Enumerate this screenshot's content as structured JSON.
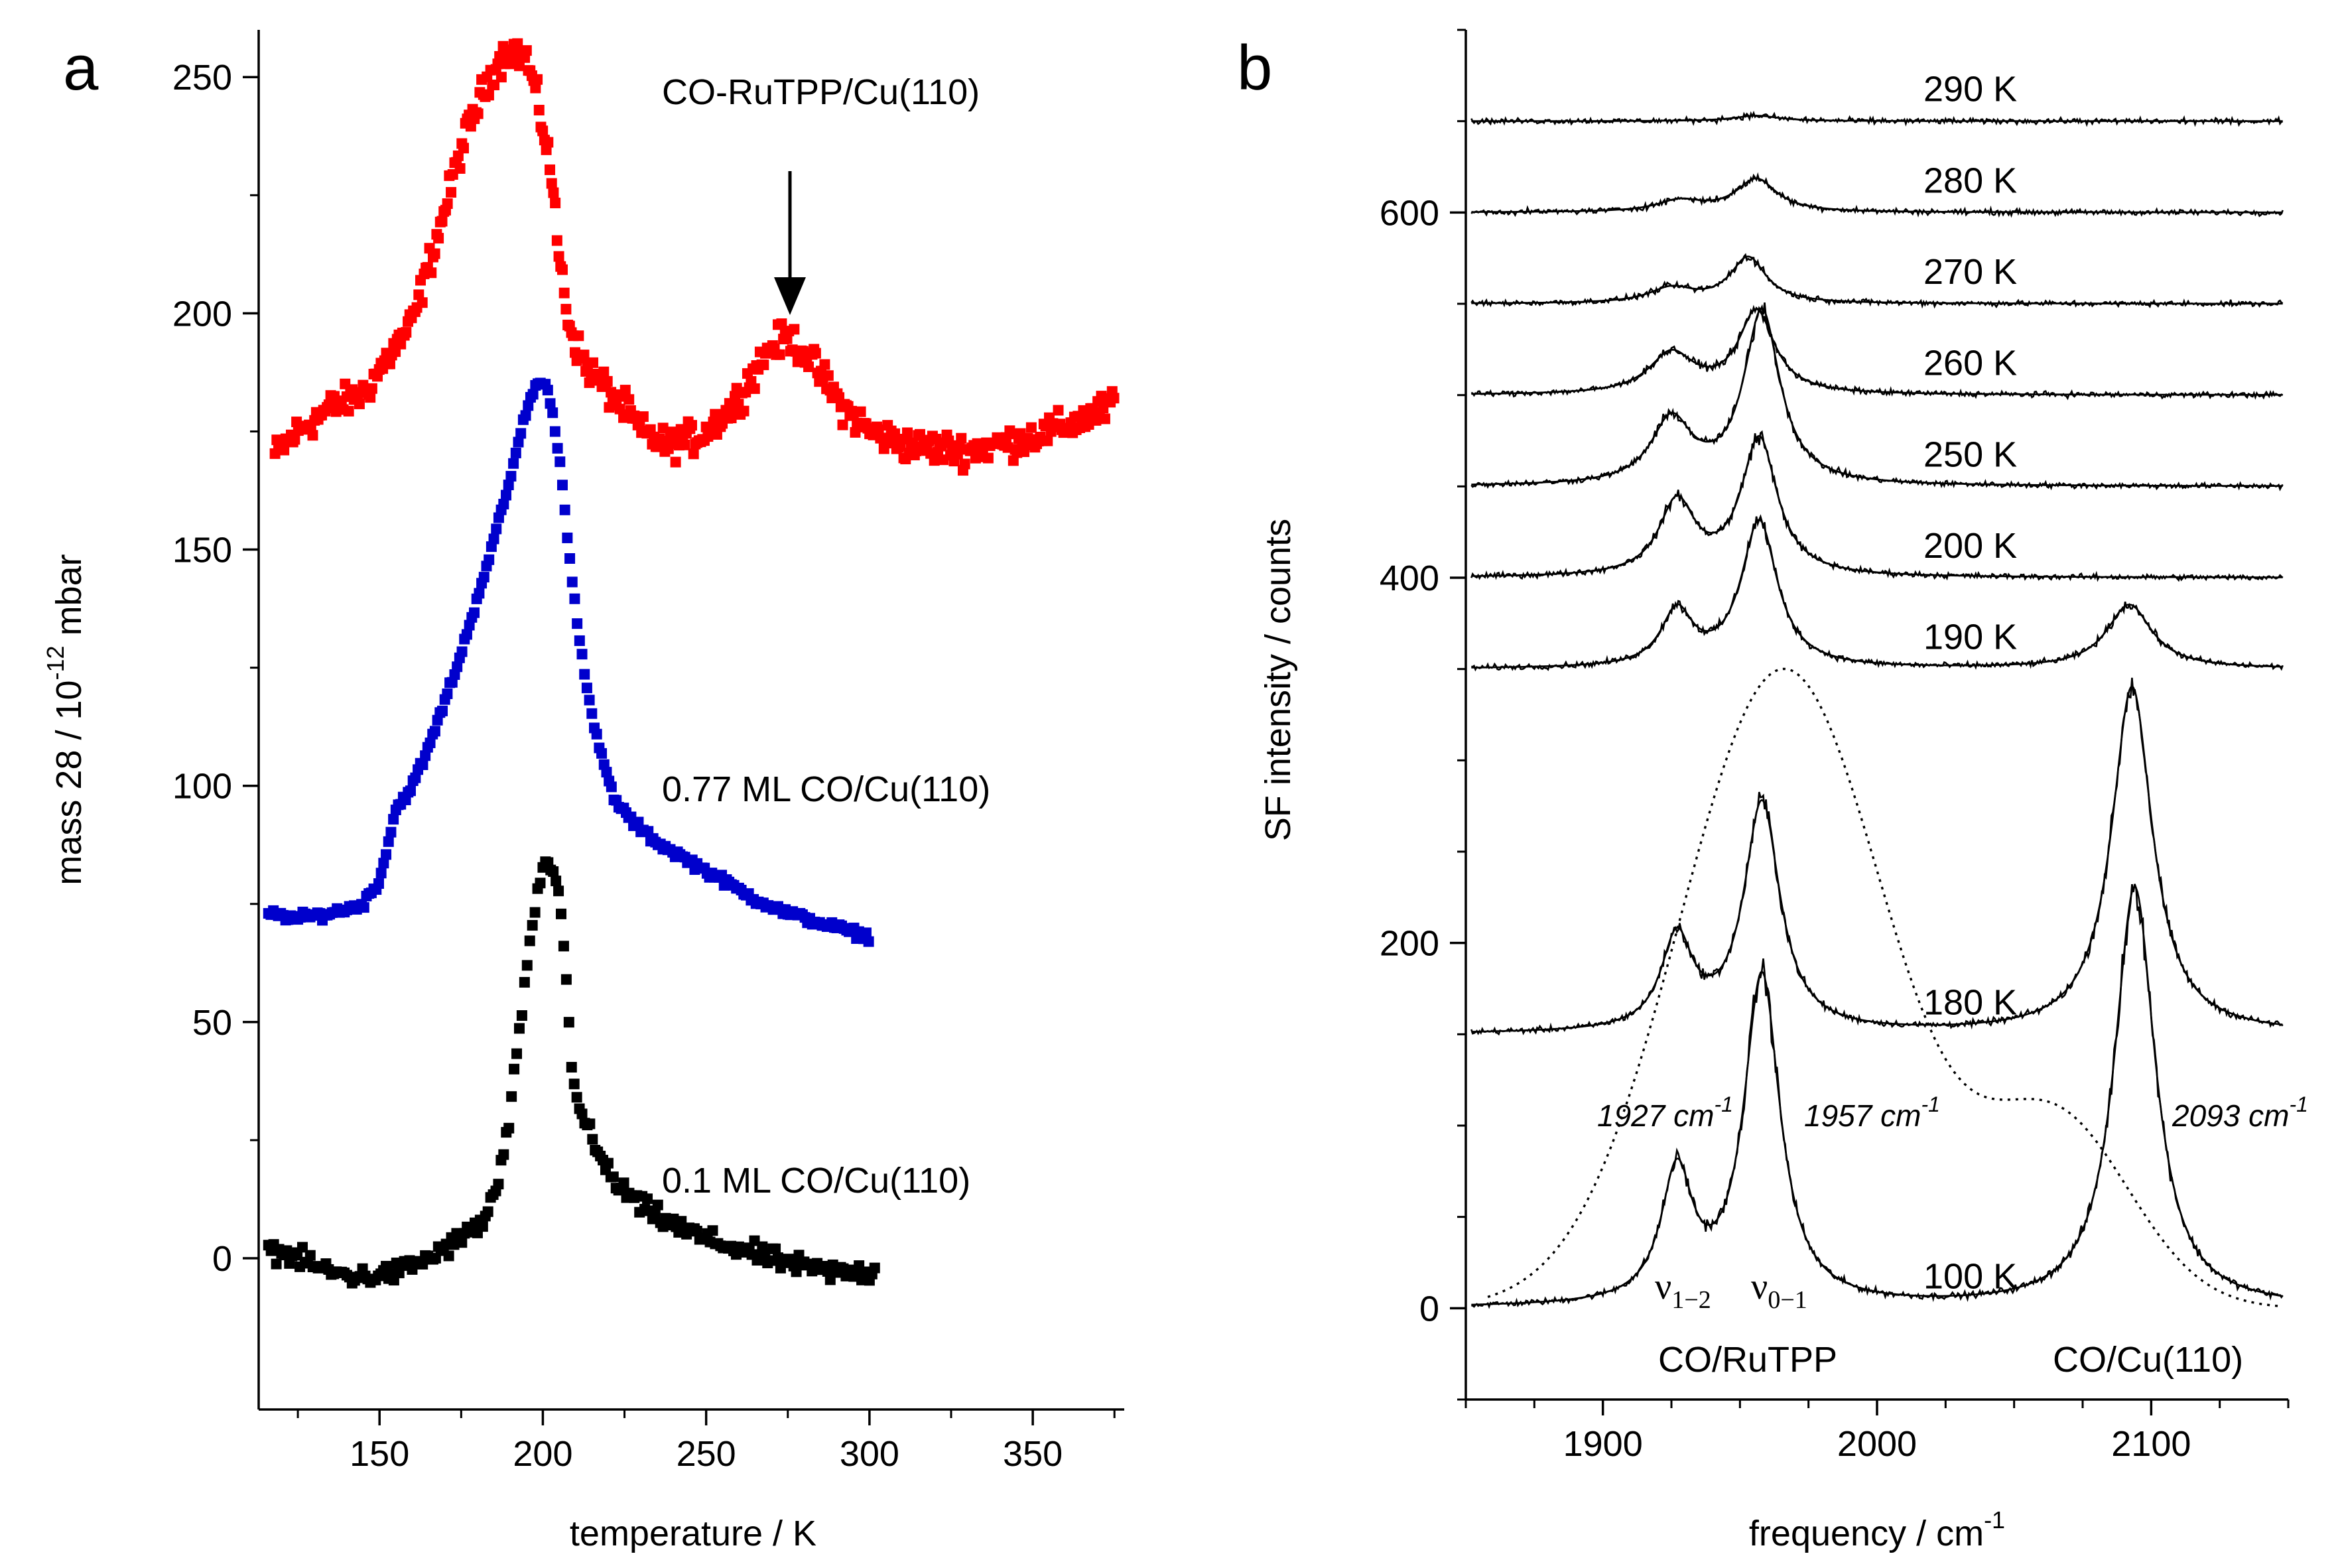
{
  "colors": {
    "red": "#ff0000",
    "blue": "#0000cc",
    "black": "#000000"
  },
  "panel_a": {
    "letter": "a",
    "xlabel": "temperature / K",
    "ylabel_main": "mass 28 / 10",
    "ylabel_exp": "-12",
    "ylabel_unit": " mbar",
    "arrow_label": "CO-RuTPP/Cu(110)"
  },
  "panel_b": {
    "letter": "b",
    "xlabel_main": "frequency / cm",
    "xlabel_exp": "-1",
    "ylabel": "SF intensity / counts",
    "peak_labels": [
      {
        "text": "1927 cm",
        "exp": "-1"
      },
      {
        "text": "1957 cm",
        "exp": "-1"
      },
      {
        "text": "2093 cm",
        "exp": "-1"
      }
    ],
    "nu12": {
      "sym": "ν",
      "sub": "1−2"
    },
    "nu01": {
      "sym": "ν",
      "sub": "0−1"
    },
    "group_ru": "CO/RuTPP",
    "group_cu": "CO/Cu(110)"
  },
  "chart_data": [
    {
      "type": "scatter",
      "title": "",
      "xlabel": "temperature / K",
      "ylabel": "mass 28 / 10^-12 mbar",
      "xlim": [
        113,
        378
      ],
      "ylim": [
        -32,
        260
      ],
      "xticks": [
        150,
        200,
        250,
        300,
        350
      ],
      "yticks": [
        0,
        50,
        100,
        150,
        200,
        250
      ],
      "series": [
        {
          "name": "CO-RuTPP/Cu(110)",
          "color": "red",
          "label": "CO-RuTPP/Cu(110)",
          "x_range": [
            118,
            375
          ],
          "points": [
            [
              118,
              170
            ],
            [
              125,
              175
            ],
            [
              135,
              180
            ],
            [
              145,
              183
            ],
            [
              150,
              188
            ],
            [
              155,
              193
            ],
            [
              160,
              198
            ],
            [
              165,
              210
            ],
            [
              170,
              222
            ],
            [
              175,
              235
            ],
            [
              180,
              244
            ],
            [
              185,
              252
            ],
            [
              190,
              256
            ],
            [
              195,
              254
            ],
            [
              198,
              246
            ],
            [
              202,
              233
            ],
            [
              205,
              212
            ],
            [
              208,
              198
            ],
            [
              212,
              190
            ],
            [
              218,
              185
            ],
            [
              225,
              180
            ],
            [
              230,
              175
            ],
            [
              238,
              172
            ],
            [
              248,
              174
            ],
            [
              258,
              180
            ],
            [
              265,
              188
            ],
            [
              270,
              193
            ],
            [
              275,
              195
            ],
            [
              280,
              192
            ],
            [
              285,
              187
            ],
            [
              292,
              180
            ],
            [
              300,
              175
            ],
            [
              312,
              172
            ],
            [
              330,
              171
            ],
            [
              345,
              173
            ],
            [
              360,
              176
            ],
            [
              370,
              179
            ],
            [
              375,
              181
            ]
          ]
        },
        {
          "name": "0.77 ML CO/Cu(110)",
          "color": "blue",
          "label": "0.77 ML CO/Cu(110)",
          "x_range": [
            116,
            300
          ],
          "points": [
            [
              116,
              73
            ],
            [
              125,
              72
            ],
            [
              135,
              73
            ],
            [
              145,
              75
            ],
            [
              150,
              80
            ],
            [
              155,
              95
            ],
            [
              160,
              100
            ],
            [
              165,
              108
            ],
            [
              170,
              118
            ],
            [
              175,
              128
            ],
            [
              180,
              140
            ],
            [
              185,
              152
            ],
            [
              190,
              165
            ],
            [
              195,
              180
            ],
            [
              199,
              186
            ],
            [
              202,
              183
            ],
            [
              205,
              170
            ],
            [
              208,
              150
            ],
            [
              211,
              132
            ],
            [
              214,
              118
            ],
            [
              218,
              106
            ],
            [
              222,
              97
            ],
            [
              228,
              92
            ],
            [
              235,
              88
            ],
            [
              245,
              84
            ],
            [
              255,
              80
            ],
            [
              265,
              76
            ],
            [
              275,
              73
            ],
            [
              285,
              71
            ],
            [
              295,
              69
            ],
            [
              300,
              68
            ]
          ]
        },
        {
          "name": "0.1 ML CO/Cu(110)",
          "color": "black",
          "label": "0.1 ML CO/Cu(110)",
          "x_range": [
            116,
            302
          ],
          "points": [
            [
              116,
              2
            ],
            [
              125,
              0
            ],
            [
              135,
              -3
            ],
            [
              145,
              -4
            ],
            [
              155,
              -3
            ],
            [
              165,
              0
            ],
            [
              175,
              4
            ],
            [
              182,
              8
            ],
            [
              186,
              15
            ],
            [
              190,
              30
            ],
            [
              193,
              50
            ],
            [
              196,
              65
            ],
            [
              199,
              80
            ],
            [
              202,
              84
            ],
            [
              205,
              78
            ],
            [
              207,
              60
            ],
            [
              209,
              40
            ],
            [
              212,
              30
            ],
            [
              217,
              22
            ],
            [
              222,
              16
            ],
            [
              230,
              11
            ],
            [
              240,
              7
            ],
            [
              250,
              4
            ],
            [
              260,
              2
            ],
            [
              270,
              0
            ],
            [
              280,
              -2
            ],
            [
              290,
              -3
            ],
            [
              300,
              -3
            ]
          ]
        }
      ]
    },
    {
      "type": "line",
      "title": "",
      "xlabel": "frequency / cm^-1",
      "ylabel": "SF intensity / counts",
      "xlim": [
        1850,
        2150
      ],
      "ylim": [
        -50,
        700
      ],
      "xticks": [
        1900,
        2000,
        2100
      ],
      "yticks": [
        0,
        200,
        400,
        600
      ],
      "annotations": [
        "1927 cm^-1",
        "1957 cm^-1",
        "2093 cm^-1",
        "ν1−2",
        "ν0−1",
        "CO/RuTPP",
        "CO/Cu(110)"
      ],
      "series": [
        {
          "name": "100 K",
          "offset": 0,
          "peaks": [
            [
              1927,
              70,
              7
            ],
            [
              1958,
              180,
              8
            ],
            [
              2094,
              230,
              9
            ]
          ]
        },
        {
          "name": "180 K",
          "offset": 150,
          "peaks": [
            [
              1927,
              50,
              7
            ],
            [
              1958,
              125,
              8
            ],
            [
              2093,
              190,
              9
            ]
          ]
        },
        {
          "name": "190 K",
          "offset": 350,
          "peaks": [
            [
              1927,
              30,
              7
            ],
            [
              1957,
              80,
              8
            ],
            [
              2092,
              35,
              10
            ]
          ]
        },
        {
          "name": "200 K",
          "offset": 400,
          "peaks": [
            [
              1927,
              40,
              8
            ],
            [
              1957,
              75,
              8
            ]
          ]
        },
        {
          "name": "250 K",
          "offset": 450,
          "peaks": [
            [
              1925,
              35,
              9
            ],
            [
              1958,
              95,
              8
            ]
          ]
        },
        {
          "name": "260 K",
          "offset": 500,
          "peaks": [
            [
              1925,
              22,
              10
            ],
            [
              1956,
              45,
              8
            ]
          ]
        },
        {
          "name": "270 K",
          "offset": 550,
          "peaks": [
            [
              1925,
              8,
              10
            ],
            [
              1953,
              25,
              8
            ]
          ]
        },
        {
          "name": "280 K",
          "offset": 600,
          "peaks": [
            [
              1928,
              6,
              10
            ],
            [
              1956,
              18,
              9
            ]
          ]
        },
        {
          "name": "290 K",
          "offset": 650,
          "peaks": [
            [
              1956,
              3,
              10
            ]
          ]
        }
      ],
      "ir_pulse_profile": {
        "style": "dotted",
        "peaks": [
          [
            1966,
            350,
            38
          ],
          [
            2066,
            100,
            27
          ]
        ]
      }
    }
  ]
}
